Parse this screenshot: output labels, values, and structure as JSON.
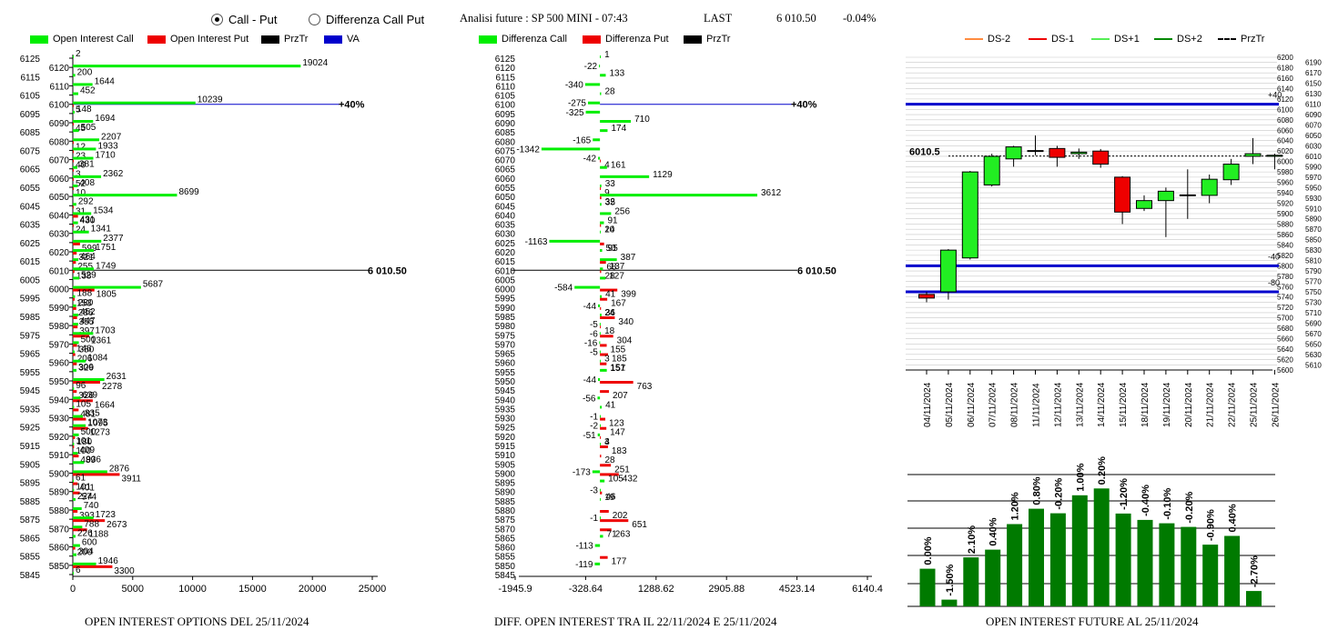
{
  "controls": {
    "radio_call_put": "Call - Put",
    "radio_diff": "Differenza Call Put",
    "selected": "call_put"
  },
  "header": {
    "title": "Analisi future : SP 500 MINI - 07:43",
    "last_label": "LAST",
    "last_value": "6 010.50",
    "change": "-0.04%"
  },
  "legends": {
    "oi": [
      {
        "label": "Open Interest Call",
        "color": "#00ee00"
      },
      {
        "label": "Open Interest Put",
        "color": "#ee0000"
      },
      {
        "label": "PrzTr",
        "color": "#000000"
      },
      {
        "label": "VA",
        "color": "#0000cc"
      }
    ],
    "diff": [
      {
        "label": "Differenza Call",
        "color": "#00ee00"
      },
      {
        "label": "Differenza Put",
        "color": "#ee0000"
      },
      {
        "label": "PrzTr",
        "color": "#000000"
      }
    ],
    "fut": [
      {
        "label": "DS-2",
        "color": "#ff8c40"
      },
      {
        "label": "DS-1",
        "color": "#ee0000"
      },
      {
        "label": "DS+1",
        "color": "#55ee55"
      },
      {
        "label": "DS+2",
        "color": "#008800"
      },
      {
        "label": "PrzTr",
        "color": "#000000"
      }
    ]
  },
  "footers": {
    "oi": "OPEN INTEREST OPTIONS DEL 25/11/2024",
    "diff": "DIFF. OPEN INTEREST TRA IL 22/11/2024 E 25/11/2024",
    "fut": "OPEN INTEREST FUTURE AL 25/11/2024"
  },
  "chart_data": [
    {
      "type": "bar",
      "orientation": "horizontal",
      "strikes": [
        6125,
        6120,
        6115,
        6110,
        6105,
        6100,
        6095,
        6090,
        6085,
        6080,
        6075,
        6070,
        6065,
        6060,
        6055,
        6050,
        6045,
        6040,
        6035,
        6030,
        6025,
        6020,
        6015,
        6010,
        6005,
        6000,
        5995,
        5990,
        5985,
        5980,
        5975,
        5970,
        5965,
        5960,
        5955,
        5950,
        5945,
        5940,
        5935,
        5930,
        5925,
        5920,
        5915,
        5910,
        5905,
        5900,
        5895,
        5890,
        5885,
        5880,
        5875,
        5870,
        5865,
        5860,
        5855,
        5850,
        5845
      ],
      "strike_labels_every": 2,
      "series": [
        {
          "name": "Open Interest Call",
          "color": "#00ee00",
          "values": [
            2,
            19024,
            200,
            1644,
            452,
            10239,
            148,
            1694,
            505,
            2207,
            1933,
            1710,
            381,
            2362,
            408,
            8699,
            292,
            1534,
            431,
            1341,
            2377,
            1751,
            464,
            1749,
            529,
            5687,
            188,
            280,
            452,
            447,
            1703,
            500,
            146,
            1084,
            306,
            2631,
            96,
            639,
            105,
            835,
            1073,
            500,
            101,
            409,
            936,
            2876,
            61,
            101,
            224,
            740,
            1723,
            788,
            226,
            600,
            304,
            1946,
            6
          ]
        },
        {
          "name": "Open Interest Put",
          "color": "#ee0000",
          "values": [
            0,
            0,
            0,
            0,
            0,
            5,
            0,
            45,
            0,
            12,
            23,
            40,
            3,
            52,
            10,
            0,
            31,
            430,
            24,
            0,
            599,
            321,
            255,
            138,
            0,
            1805,
            153,
            286,
            355,
            397,
            1361,
            350,
            206,
            329,
            0,
            2278,
            326,
            1664,
            481,
            1095,
            1273,
            180,
            100,
            489,
            0,
            3911,
            401,
            574,
            0,
            393,
            2673,
            1188,
            0,
            200,
            0,
            3300,
            0
          ]
        }
      ],
      "xlim": [
        0,
        25000
      ],
      "xticks": [
        0,
        5000,
        10000,
        15000,
        20000,
        25000
      ],
      "annotations": [
        {
          "strike": 6100,
          "label": "+40%",
          "type": "VA"
        },
        {
          "strike": 6010,
          "label": "6 010.50",
          "type": "PrzTr"
        }
      ]
    },
    {
      "type": "bar",
      "orientation": "horizontal",
      "strikes": [
        6125,
        6120,
        6115,
        6110,
        6105,
        6100,
        6095,
        6090,
        6085,
        6080,
        6075,
        6070,
        6065,
        6060,
        6055,
        6050,
        6045,
        6040,
        6035,
        6030,
        6025,
        6020,
        6015,
        6010,
        6005,
        6000,
        5995,
        5990,
        5985,
        5980,
        5975,
        5970,
        5965,
        5960,
        5955,
        5950,
        5945,
        5940,
        5935,
        5930,
        5925,
        5920,
        5915,
        5910,
        5905,
        5900,
        5895,
        5890,
        5885,
        5880,
        5875,
        5870,
        5865,
        5860,
        5855,
        5850,
        5845
      ],
      "series": [
        {
          "name": "Differenza Call",
          "color": "#00ee00",
          "values": [
            1,
            -22,
            133,
            -340,
            28,
            -275,
            -325,
            710,
            174,
            -165,
            -1342,
            -42,
            161,
            1129,
            33,
            3612,
            35,
            256,
            91,
            10,
            -1163,
            50,
            387,
            68,
            127,
            -584,
            41,
            -44,
            36,
            -5,
            -6,
            -16,
            -5,
            3,
            157,
            -44,
            0,
            -56,
            41,
            -1,
            -2,
            -51,
            4,
            0,
            0,
            -173,
            105,
            -3,
            19,
            0,
            -1,
            0,
            71,
            -113,
            0,
            -119,
            0
          ]
        },
        {
          "name": "Differenza Put",
          "color": "#ee0000",
          "values": [
            0,
            0,
            0,
            0,
            0,
            0,
            0,
            0,
            0,
            0,
            0,
            4,
            0,
            0,
            9,
            32,
            0,
            0,
            24,
            0,
            95,
            0,
            137,
            28,
            0,
            399,
            167,
            24,
            340,
            18,
            304,
            155,
            185,
            151,
            0,
            763,
            207,
            0,
            0,
            123,
            147,
            3,
            183,
            28,
            251,
            432,
            0,
            46,
            0,
            202,
            651,
            263,
            0,
            0,
            177,
            0,
            0
          ]
        }
      ],
      "xlim": [
        -1945.9,
        6140.4
      ],
      "xticks": [
        -1945.9,
        -328.64,
        1288.62,
        2905.88,
        4523.14,
        6140.4
      ],
      "annotations": [
        {
          "strike": 6100,
          "label": "+40%",
          "type": "VA"
        },
        {
          "strike": 6010,
          "label": "6 010.50",
          "type": "PrzTr"
        }
      ]
    },
    {
      "type": "candlestick",
      "dates": [
        "04/11/2024",
        "05/11/2024",
        "06/11/2024",
        "07/11/2024",
        "08/11/2024",
        "11/11/2024",
        "12/11/2024",
        "13/11/2024",
        "14/11/2024",
        "15/11/2024",
        "18/11/2024",
        "19/11/2024",
        "20/11/2024",
        "21/11/2024",
        "22/11/2024",
        "25/11/2024",
        "26/11/2024"
      ],
      "open": [
        5745,
        5750,
        5815,
        5955,
        6005,
        6020,
        6025,
        6015,
        6020,
        5970,
        5910,
        5925,
        5935,
        5935,
        5965,
        6010,
        6010
      ],
      "close": [
        5738,
        5830,
        5980,
        6010,
        6028,
        6021,
        6008,
        6018,
        5995,
        5903,
        5925,
        5943,
        5936,
        5966,
        5995,
        6015,
        6012
      ],
      "high": [
        5750,
        5832,
        5982,
        6015,
        6030,
        6050,
        6030,
        6025,
        6024,
        5972,
        5935,
        5950,
        5985,
        5975,
        6005,
        6045,
        6015
      ],
      "low": [
        5730,
        5735,
        5812,
        5952,
        5990,
        6012,
        5990,
        6005,
        5988,
        5880,
        5905,
        5855,
        5890,
        5920,
        5955,
        5995,
        5985
      ],
      "ylim": [
        5600,
        6200
      ],
      "ytick_step": 10,
      "hlines": [
        {
          "value": 6110,
          "label": "+40",
          "color": "#0000cc"
        },
        {
          "value": 5800,
          "label": "-40",
          "color": "#0000cc"
        },
        {
          "value": 5750,
          "label": "-80",
          "color": "#0000cc"
        }
      ],
      "przTr": 6010.5,
      "przTr_label": "6010.5"
    },
    {
      "type": "bar",
      "categories": [
        "04/11/2024",
        "05/11/2024",
        "06/11/2024",
        "07/11/2024",
        "08/11/2024",
        "11/11/2024",
        "12/11/2024",
        "13/11/2024",
        "14/11/2024",
        "15/11/2024",
        "18/11/2024",
        "19/11/2024",
        "20/11/2024",
        "21/11/2024",
        "22/11/2024",
        "25/11/2024",
        "26/11/2024"
      ],
      "values": [
        41.4,
        7.4,
        53.9,
        62.4,
        90.5,
        107.4,
        102.4,
        122.2,
        129.7,
        102.1,
        95.1,
        91.4,
        87.4,
        67.9,
        77.5,
        16.9,
        null
      ],
      "labels": [
        "0.00%",
        "-1.50%",
        "2.10%",
        "0.40%",
        "1.20%",
        "0.80%",
        "-0.20%",
        "1.00%",
        "0.20%",
        "-1.20%",
        "-0.40%",
        "-0.10%",
        "-0.20%",
        "-0.90%",
        "0.40%",
        "-2.70%",
        ""
      ],
      "color": "#007a00"
    }
  ]
}
